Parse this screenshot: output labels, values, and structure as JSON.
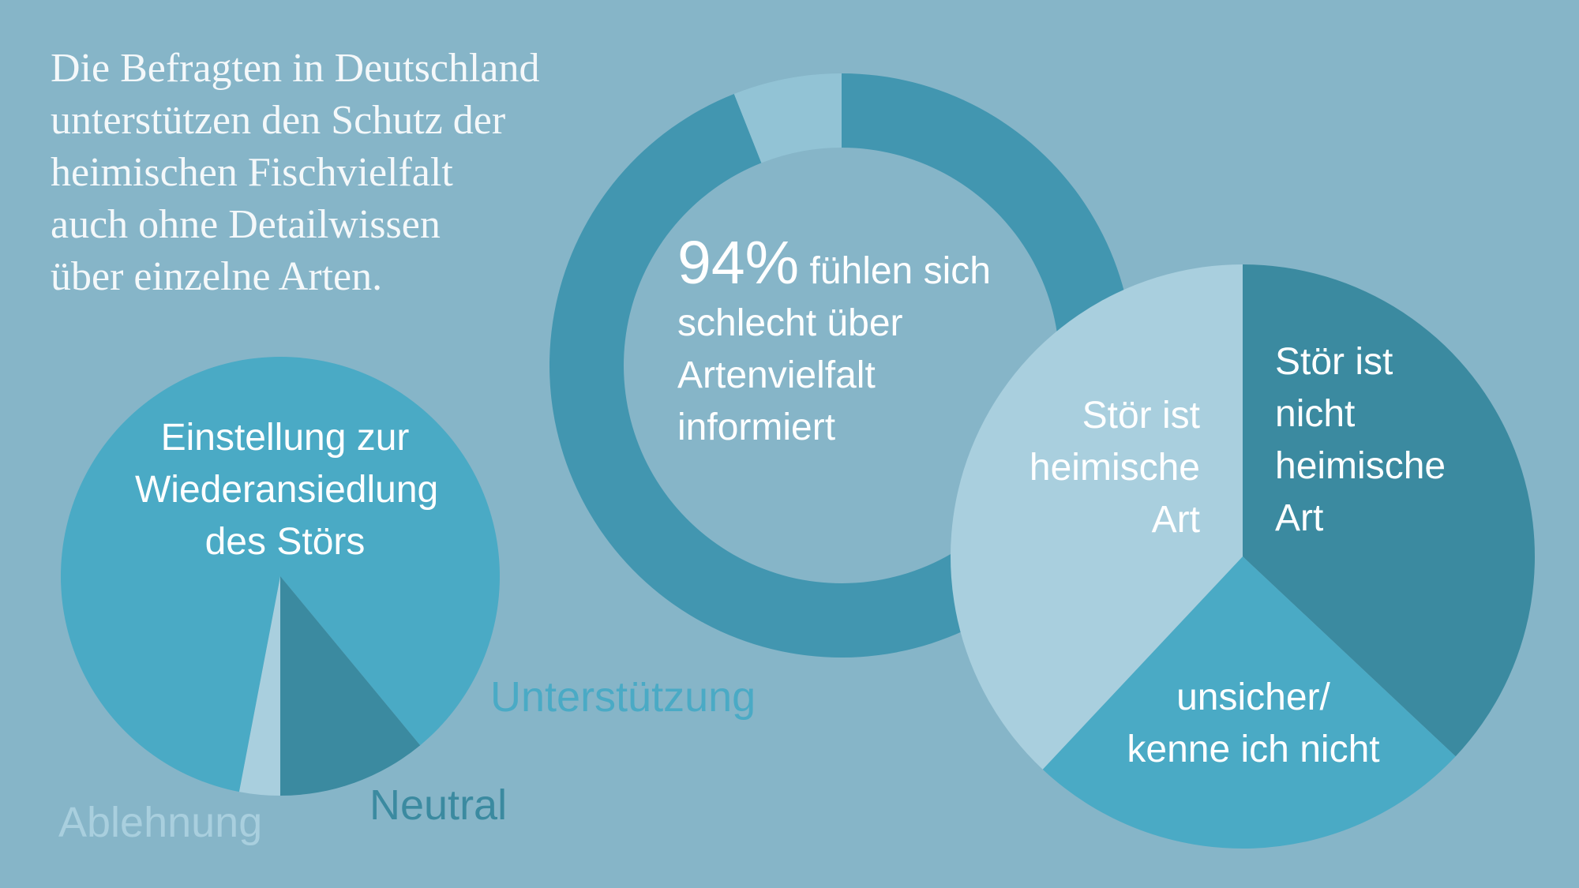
{
  "header": {
    "title_lines": [
      "Die Befragten in Deutschland",
      "unterstützen den Schutz der",
      "heimischen Fischvielfalt",
      "auch ohne Detailwissen",
      "über einzelne Arten."
    ]
  },
  "chart_data": [
    {
      "type": "pie",
      "title": "Einstellung zur Wiederansiedlung des Störs",
      "categories": [
        "Ablehnung",
        "Unterstützung",
        "Neutral"
      ],
      "values": [
        3,
        86,
        11
      ],
      "colors": [
        "#a9cfde",
        "#4aaac5",
        "#3b8aa0"
      ]
    },
    {
      "type": "donut",
      "categories": [
        "fühlen sich schlecht über Artenvielfalt informiert",
        null
      ],
      "values": [
        94,
        6
      ],
      "value_labels": [
        "94%",
        null
      ],
      "colors": [
        "#4296b0",
        "#92c3d5"
      ]
    },
    {
      "type": "pie",
      "categories": [
        "Stör ist nicht heimische Art",
        "unsicher/ kenne ich nicht",
        "Stör ist heimische Art"
      ],
      "values": [
        37,
        25,
        38
      ],
      "colors": [
        "#3b8aa0",
        "#4aaac5",
        "#a9cfde"
      ]
    }
  ]
}
